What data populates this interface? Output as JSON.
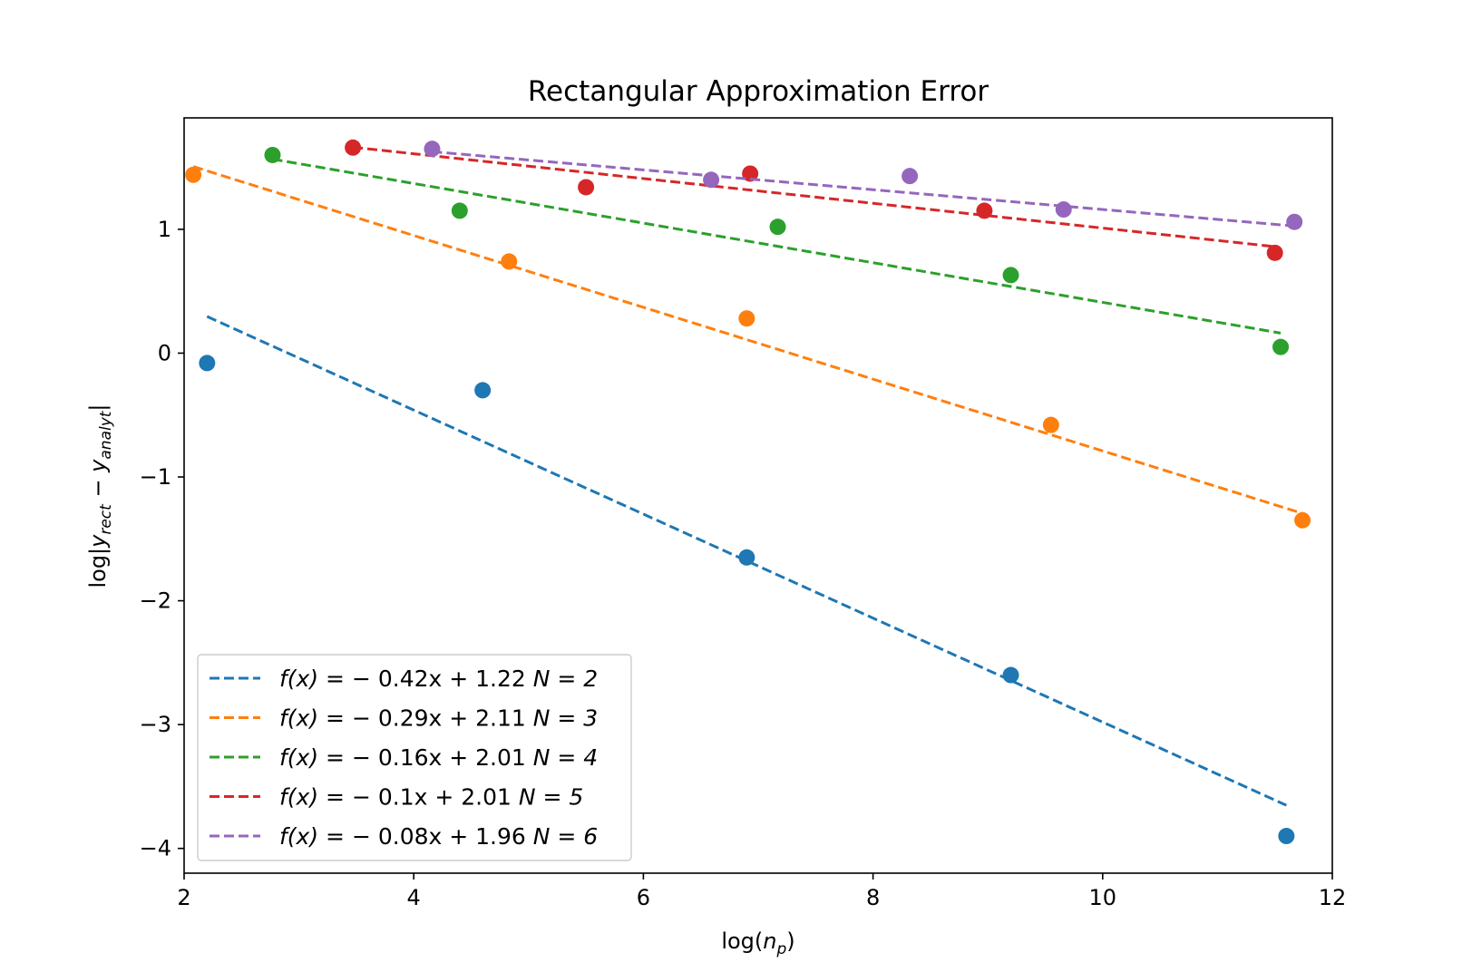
{
  "chart_data": {
    "type": "scatter",
    "title": "Rectangular Approximation Error",
    "xlabel": {
      "prefix": "log(",
      "var": "n",
      "sub": "p",
      "suffix": ")"
    },
    "ylabel": {
      "prefix": "log|",
      "v1": "y",
      "s1": "rect",
      "op": " − ",
      "v2": "y",
      "s2": "analyt",
      "suffix": "|"
    },
    "xlim": [
      2,
      12
    ],
    "ylim": [
      -4.2,
      1.9
    ],
    "xticks": [
      2,
      4,
      6,
      8,
      10,
      12
    ],
    "yticks": [
      -4,
      -3,
      -2,
      -1,
      0,
      1
    ],
    "xtick_labels": [
      "2",
      "4",
      "6",
      "8",
      "10",
      "12"
    ],
    "ytick_labels": [
      "−4",
      "−3",
      "−2",
      "−1",
      "0",
      "1"
    ],
    "grid": false,
    "legend_position": "lower-left",
    "series": [
      {
        "name": "f(x) = −0.42x + 1.22 N = 2",
        "legend": {
          "lhs": "f(x)",
          "rhs": " = − 0.42x + 1.22 ",
          "n": "N = 2"
        },
        "color": "#1f77b4",
        "slope": -0.42,
        "intercept": 1.22,
        "fit_x": [
          2.2,
          11.6
        ],
        "points": [
          [
            2.2,
            -0.08
          ],
          [
            4.6,
            -0.3
          ],
          [
            6.9,
            -1.65
          ],
          [
            9.2,
            -2.6
          ],
          [
            11.6,
            -3.9
          ]
        ]
      },
      {
        "name": "f(x) = −0.29x + 2.11 N = 3",
        "legend": {
          "lhs": "f(x)",
          "rhs": " = − 0.29x + 2.11 ",
          "n": "N = 3"
        },
        "color": "#ff7f0e",
        "slope": -0.29,
        "intercept": 2.11,
        "fit_x": [
          2.08,
          11.74
        ],
        "points": [
          [
            2.08,
            1.44
          ],
          [
            4.83,
            0.74
          ],
          [
            6.9,
            0.28
          ],
          [
            9.55,
            -0.58
          ],
          [
            11.74,
            -1.35
          ]
        ]
      },
      {
        "name": "f(x) = −0.16x + 2.01 N = 4",
        "legend": {
          "lhs": "f(x)",
          "rhs": " = − 0.16x + 2.01 ",
          "n": "N = 4"
        },
        "color": "#2ca02c",
        "slope": -0.16,
        "intercept": 2.01,
        "fit_x": [
          2.77,
          11.55
        ],
        "points": [
          [
            2.77,
            1.6
          ],
          [
            4.4,
            1.15
          ],
          [
            7.17,
            1.02
          ],
          [
            9.2,
            0.63
          ],
          [
            11.55,
            0.05
          ]
        ]
      },
      {
        "name": "f(x) = −0.1x + 2.01 N = 5",
        "legend": {
          "lhs": "f(x)",
          "rhs": " = − 0.1x + 2.01 ",
          "n": "N = 5"
        },
        "color": "#d62728",
        "slope": -0.1,
        "intercept": 2.01,
        "fit_x": [
          3.47,
          11.5
        ],
        "points": [
          [
            3.47,
            1.66
          ],
          [
            5.5,
            1.34
          ],
          [
            6.93,
            1.45
          ],
          [
            8.97,
            1.15
          ],
          [
            11.5,
            0.81
          ]
        ]
      },
      {
        "name": "f(x) = −0.08x + 1.96 N = 6",
        "legend": {
          "lhs": "f(x)",
          "rhs": " = − 0.08x + 1.96 ",
          "n": "N = 6"
        },
        "color": "#9467bd",
        "slope": -0.08,
        "intercept": 1.96,
        "fit_x": [
          4.16,
          11.67
        ],
        "points": [
          [
            4.16,
            1.65
          ],
          [
            6.59,
            1.4
          ],
          [
            8.32,
            1.43
          ],
          [
            9.66,
            1.16
          ],
          [
            11.67,
            1.06
          ]
        ]
      }
    ]
  }
}
